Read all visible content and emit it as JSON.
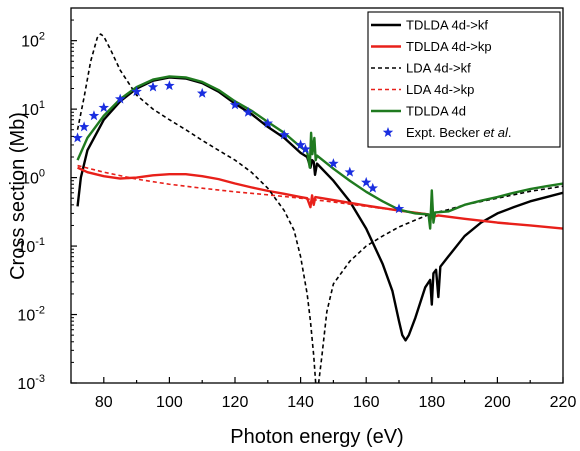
{
  "chart_data": {
    "type": "line",
    "xlabel": "Photon energy (eV)",
    "ylabel": "Cross section (Mb)",
    "xlim": [
      70,
      220
    ],
    "ylim": [
      0.001,
      300
    ],
    "yscale": "log",
    "x_ticks": [
      80,
      100,
      120,
      140,
      160,
      180,
      200,
      220
    ],
    "y_ticks": [
      {
        "value": 0.001,
        "base": "10",
        "exp": "-3"
      },
      {
        "value": 0.01,
        "base": "10",
        "exp": "-2"
      },
      {
        "value": 0.1,
        "base": "10",
        "exp": "-1"
      },
      {
        "value": 1,
        "base": "10",
        "exp": "0"
      },
      {
        "value": 10,
        "base": "10",
        "exp": "1"
      },
      {
        "value": 100,
        "base": "10",
        "exp": "2"
      }
    ],
    "legend": {
      "placement": "top-right"
    },
    "grid": false,
    "series": [
      {
        "name": "TDLDA 4d->kf",
        "color": "#000000",
        "dash": "solid",
        "width": 2.4,
        "points": [
          [
            72,
            0.38
          ],
          [
            73,
            1.0
          ],
          [
            75,
            2.5
          ],
          [
            80,
            7
          ],
          [
            85,
            13
          ],
          [
            90,
            20
          ],
          [
            95,
            26
          ],
          [
            100,
            29
          ],
          [
            105,
            28
          ],
          [
            110,
            24
          ],
          [
            115,
            18
          ],
          [
            120,
            12
          ],
          [
            125,
            8.5
          ],
          [
            130,
            5.5
          ],
          [
            135,
            3.8
          ],
          [
            140,
            2.3
          ],
          [
            142,
            2.0
          ],
          [
            143,
            1.4
          ],
          [
            143.5,
            1.8
          ],
          [
            144,
            1.7
          ],
          [
            144.4,
            1.1
          ],
          [
            145,
            1.6
          ],
          [
            150,
            0.9
          ],
          [
            155,
            0.45
          ],
          [
            160,
            0.18
          ],
          [
            165,
            0.055
          ],
          [
            168,
            0.022
          ],
          [
            170,
            0.008
          ],
          [
            171,
            0.005
          ],
          [
            172,
            0.0042
          ],
          [
            173,
            0.005
          ],
          [
            175,
            0.009
          ],
          [
            178,
            0.025
          ],
          [
            179.5,
            0.032
          ],
          [
            180,
            0.014
          ],
          [
            180.5,
            0.04
          ],
          [
            181.3,
            0.045
          ],
          [
            182,
            0.018
          ],
          [
            182.6,
            0.05
          ],
          [
            185,
            0.07
          ],
          [
            190,
            0.14
          ],
          [
            195,
            0.22
          ],
          [
            200,
            0.3
          ],
          [
            205,
            0.37
          ],
          [
            210,
            0.45
          ],
          [
            215,
            0.52
          ],
          [
            220,
            0.6
          ]
        ]
      },
      {
        "name": "TDLDA 4d->kp",
        "color": "#e8201a",
        "dash": "solid",
        "width": 2.4,
        "points": [
          [
            72,
            1.4
          ],
          [
            75,
            1.2
          ],
          [
            80,
            1.05
          ],
          [
            85,
            0.97
          ],
          [
            90,
            1.0
          ],
          [
            95,
            1.08
          ],
          [
            100,
            1.12
          ],
          [
            105,
            1.12
          ],
          [
            110,
            1.05
          ],
          [
            115,
            0.95
          ],
          [
            120,
            0.82
          ],
          [
            125,
            0.72
          ],
          [
            130,
            0.64
          ],
          [
            135,
            0.58
          ],
          [
            140,
            0.52
          ],
          [
            142,
            0.5
          ],
          [
            143,
            0.37
          ],
          [
            143.5,
            0.55
          ],
          [
            144,
            0.4
          ],
          [
            144.5,
            0.52
          ],
          [
            150,
            0.47
          ],
          [
            160,
            0.39
          ],
          [
            170,
            0.33
          ],
          [
            179,
            0.29
          ],
          [
            179.6,
            0.24
          ],
          [
            180,
            0.33
          ],
          [
            180.5,
            0.27
          ],
          [
            182,
            0.28
          ],
          [
            190,
            0.25
          ],
          [
            200,
            0.22
          ],
          [
            210,
            0.2
          ],
          [
            220,
            0.18
          ]
        ]
      },
      {
        "name": "LDA 4d->kf",
        "color": "#000000",
        "dash": "4,3",
        "width": 1.6,
        "points": [
          [
            72,
            5
          ],
          [
            74,
            15
          ],
          [
            76,
            50
          ],
          [
            78,
            110
          ],
          [
            79,
            125
          ],
          [
            80,
            115
          ],
          [
            82,
            75
          ],
          [
            85,
            37
          ],
          [
            90,
            16
          ],
          [
            95,
            10
          ],
          [
            100,
            7
          ],
          [
            105,
            5
          ],
          [
            110,
            3.5
          ],
          [
            115,
            2.5
          ],
          [
            120,
            1.8
          ],
          [
            125,
            1.2
          ],
          [
            130,
            0.7
          ],
          [
            135,
            0.33
          ],
          [
            138,
            0.17
          ],
          [
            140,
            0.07
          ],
          [
            142,
            0.02
          ],
          [
            143,
            0.008
          ],
          [
            144,
            0.0025
          ],
          [
            144.6,
            0.001
          ],
          [
            145.5,
            0.001
          ],
          [
            146.5,
            0.0025
          ],
          [
            148,
            0.011
          ],
          [
            150,
            0.028
          ],
          [
            155,
            0.06
          ],
          [
            160,
            0.1
          ],
          [
            165,
            0.14
          ],
          [
            170,
            0.19
          ],
          [
            175,
            0.24
          ],
          [
            180,
            0.3
          ],
          [
            185,
            0.34
          ],
          [
            190,
            0.4
          ],
          [
            200,
            0.5
          ],
          [
            210,
            0.63
          ],
          [
            220,
            0.75
          ]
        ]
      },
      {
        "name": "LDA 4d->kp",
        "color": "#e8201a",
        "dash": "4,3",
        "width": 1.6,
        "points": [
          [
            72,
            1.5
          ],
          [
            80,
            1.2
          ],
          [
            90,
            0.95
          ],
          [
            100,
            0.8
          ],
          [
            110,
            0.7
          ],
          [
            120,
            0.62
          ],
          [
            130,
            0.56
          ],
          [
            140,
            0.5
          ],
          [
            150,
            0.44
          ],
          [
            160,
            0.38
          ],
          [
            170,
            0.33
          ],
          [
            180,
            0.29
          ],
          [
            190,
            0.25
          ],
          [
            200,
            0.22
          ],
          [
            210,
            0.2
          ],
          [
            220,
            0.18
          ]
        ]
      },
      {
        "name": "TDLDA 4d",
        "color": "#1f7a1f",
        "dash": "solid",
        "width": 2.4,
        "points": [
          [
            72,
            1.8
          ],
          [
            75,
            3.8
          ],
          [
            80,
            8
          ],
          [
            85,
            14
          ],
          [
            90,
            21
          ],
          [
            95,
            27
          ],
          [
            100,
            30
          ],
          [
            105,
            29
          ],
          [
            110,
            25
          ],
          [
            115,
            19
          ],
          [
            120,
            13
          ],
          [
            125,
            9.5
          ],
          [
            130,
            6.5
          ],
          [
            135,
            4.5
          ],
          [
            140,
            2.8
          ],
          [
            142,
            2.4
          ],
          [
            142.8,
            1.4
          ],
          [
            143.2,
            4.5
          ],
          [
            143.6,
            2.2
          ],
          [
            144.2,
            3.8
          ],
          [
            144.6,
            1.8
          ],
          [
            145,
            2.1
          ],
          [
            150,
            1.35
          ],
          [
            155,
            0.9
          ],
          [
            160,
            0.62
          ],
          [
            165,
            0.45
          ],
          [
            170,
            0.34
          ],
          [
            175,
            0.3
          ],
          [
            179,
            0.29
          ],
          [
            179.5,
            0.18
          ],
          [
            180,
            0.65
          ],
          [
            180.5,
            0.22
          ],
          [
            181,
            0.31
          ],
          [
            185,
            0.32
          ],
          [
            190,
            0.4
          ],
          [
            195,
            0.46
          ],
          [
            200,
            0.52
          ],
          [
            205,
            0.6
          ],
          [
            210,
            0.68
          ],
          [
            215,
            0.75
          ],
          [
            220,
            0.82
          ]
        ]
      },
      {
        "name": "Expt. Becker et al.",
        "color": "#1a2ee0",
        "marker": "star",
        "points": [
          [
            72,
            3.8
          ],
          [
            74,
            5.5
          ],
          [
            77,
            8
          ],
          [
            80,
            10.5
          ],
          [
            85,
            14
          ],
          [
            90,
            18
          ],
          [
            95,
            21
          ],
          [
            100,
            22
          ],
          [
            110,
            17
          ],
          [
            120,
            11.5
          ],
          [
            124,
            9
          ],
          [
            130,
            6.2
          ],
          [
            135,
            4.2
          ],
          [
            140,
            3.0
          ],
          [
            141.5,
            2.6
          ],
          [
            150,
            1.6
          ],
          [
            155,
            1.2
          ],
          [
            160,
            0.85
          ],
          [
            162,
            0.7
          ],
          [
            170,
            0.35
          ]
        ]
      }
    ]
  },
  "legend_items": [
    {
      "text": "TDLDA 4d->kf"
    },
    {
      "text": "TDLDA 4d->kp"
    },
    {
      "text": "LDA 4d->kf"
    },
    {
      "text": "LDA 4d->kp"
    },
    {
      "text": "TDLDA 4d"
    },
    {
      "text_parts": [
        "Expt. Becker ",
        "et al",
        "."
      ]
    }
  ]
}
